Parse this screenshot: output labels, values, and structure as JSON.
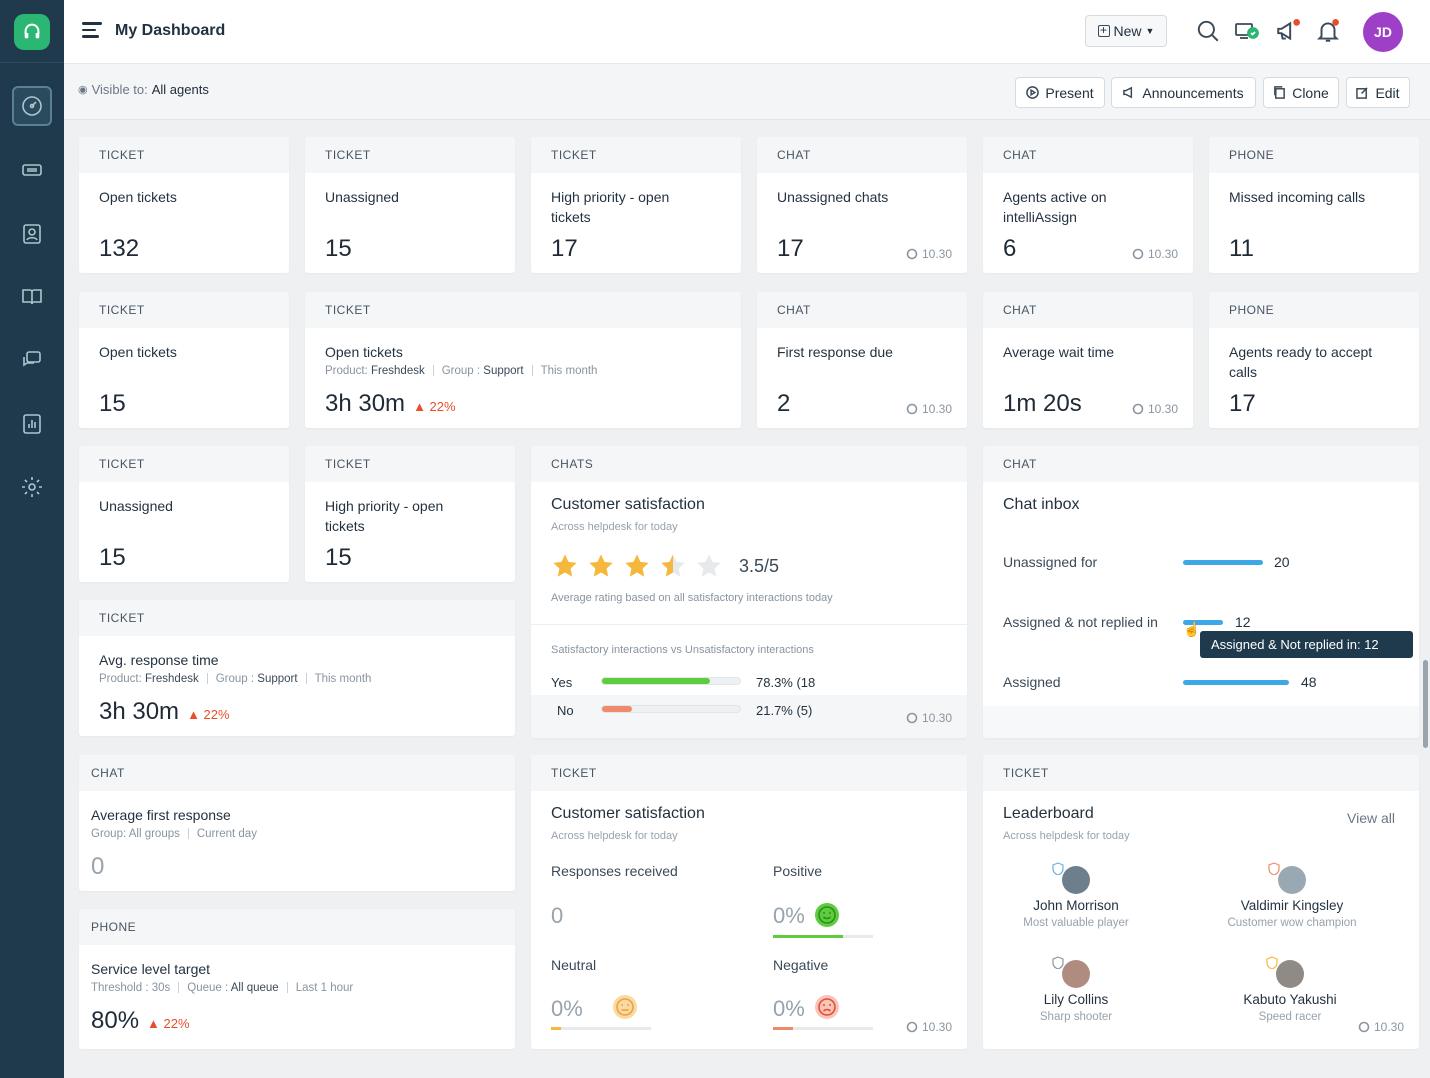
{
  "header": {
    "title": "My Dashboard",
    "new_label": "New",
    "avatar_initials": "JD"
  },
  "toolbar": {
    "visible_label": "Visible to:",
    "visible_value": "All agents",
    "present": "Present",
    "announcements": "Announcements",
    "clone": "Clone",
    "edit": "Edit"
  },
  "stamp": "10.30",
  "cards": {
    "c1": {
      "type": "TICKET",
      "title": "Open tickets",
      "value": "132"
    },
    "c2": {
      "type": "TICKET",
      "title": "Unassigned",
      "value": "15"
    },
    "c3": {
      "type": "TICKET",
      "title": "High priority - open tickets",
      "value": "17"
    },
    "c4": {
      "type": "CHAT",
      "title": "Unassigned chats",
      "value": "17"
    },
    "c5": {
      "type": "CHAT",
      "title": "Agents active on intelliAssign",
      "value": "6"
    },
    "c6": {
      "type": "PHONE",
      "title": "Missed incoming calls",
      "value": "11"
    },
    "c7": {
      "type": "TICKET",
      "title": "Open tickets",
      "value": "15"
    },
    "c8": {
      "type": "TICKET",
      "title": "Open tickets",
      "value": "3h 30m",
      "meta_product_label": "Product:",
      "meta_product": "Freshdesk",
      "meta_group_label": "Group :",
      "meta_group": "Support",
      "meta_period": "This month",
      "delta": "22%"
    },
    "c9": {
      "type": "CHAT",
      "title": "First response due",
      "value": "2"
    },
    "c10": {
      "type": "CHAT",
      "title": "Average wait time",
      "value": "1m 20s"
    },
    "c11": {
      "type": "PHONE",
      "title": "Agents ready to accept calls",
      "value": "17"
    },
    "c12": {
      "type": "TICKET",
      "title": "Unassigned",
      "value": "15"
    },
    "c13": {
      "type": "TICKET",
      "title": "High priority - open tickets",
      "value": "15"
    },
    "c14": {
      "type": "TICKET",
      "title": "Avg. response time",
      "value": "3h 30m",
      "meta_product_label": "Product:",
      "meta_product": "Freshdesk",
      "meta_group_label": "Group :",
      "meta_group": "Support",
      "meta_period": "This month",
      "delta": "22%"
    },
    "c15": {
      "type": "CHAT",
      "title": "Average first response",
      "value": "0",
      "meta_group": "Group: All groups",
      "meta_period": "Current day"
    },
    "c16": {
      "type": "PHONE",
      "title": "Service level target",
      "value": "80%",
      "meta_threshold": "Threshold : 30s",
      "meta_queue_label": "Queue :",
      "meta_queue": "All queue",
      "meta_period": "Last 1 hour",
      "delta": "22%"
    }
  },
  "csat": {
    "type": "CHATS",
    "title": "Customer satisfaction",
    "subtitle": "Across helpdesk for today",
    "rating": "3.5/5",
    "rating_value": 3.5,
    "note": "Average rating based on all satisfactory interactions today",
    "compare_label": "Satisfactory interactions vs Unsatisfactory interactions",
    "yes_label": "Yes",
    "yes_value": "78.3% (18",
    "yes_fraction": 0.783,
    "no_label": "No",
    "no_value": "21.7% (5)",
    "no_fraction": 0.217
  },
  "chat_inbox": {
    "type": "CHAT",
    "title": "Chat inbox",
    "rows": [
      {
        "label": "Unassigned for",
        "value": "20"
      },
      {
        "label": "Assigned & not replied in",
        "value": "12"
      },
      {
        "label": "Assigned",
        "value": "48"
      }
    ],
    "tooltip": "Assigned & Not replied in: 12"
  },
  "ticket_csat": {
    "type": "TICKET",
    "title": "Customer satisfaction",
    "subtitle": "Across helpdesk for today",
    "responses_label": "Responses received",
    "responses_value": "0",
    "positive_label": "Positive",
    "positive_value": "0%",
    "neutral_label": "Neutral",
    "neutral_value": "0%",
    "negative_label": "Negative",
    "negative_value": "0%"
  },
  "leaderboard": {
    "type": "TICKET",
    "title": "Leaderboard",
    "subtitle": "Across helpdesk for today",
    "view_all": "View all",
    "people": [
      {
        "name": "John Morrison",
        "role": "Most valuable player"
      },
      {
        "name": "Valdimir Kingsley",
        "role": "Customer wow champion"
      },
      {
        "name": "Lily Collins",
        "role": "Sharp shooter"
      },
      {
        "name": "Kabuto Yakushi",
        "role": "Speed racer"
      }
    ]
  },
  "colors": {
    "sidebar": "#1e3a4c",
    "brand": "#2bb673",
    "avatar": "#9d3fc7",
    "delta": "#e5502b",
    "bar_blue": "#3ea8e6",
    "bar_green": "#5dcc3f",
    "bar_red": "#f08a6c",
    "star": "#f5b83d"
  },
  "icons": [
    "headset-logo-icon",
    "dashboard-icon",
    "ticket-icon",
    "contacts-icon",
    "book-icon",
    "chat-icon",
    "reports-icon",
    "gear-icon",
    "search-icon",
    "agent-status-icon",
    "megaphone-icon",
    "bell-icon"
  ]
}
